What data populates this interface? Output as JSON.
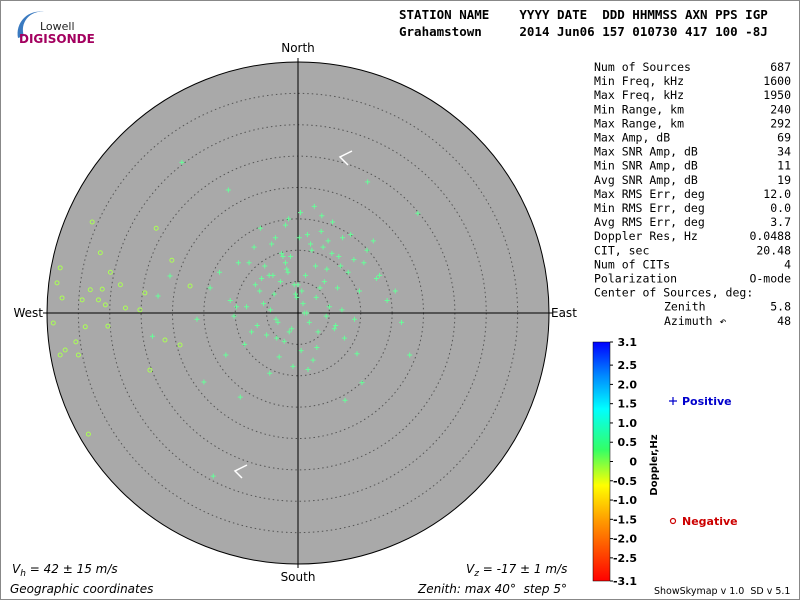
{
  "logo": {
    "top": "Lowell",
    "bottom": "DIGISONDE"
  },
  "header": {
    "line1": "STATION NAME    YYYY DATE  DDD HHMMSS AXN PPS IGP",
    "line2": "Grahamstown     2014 Jun06 157 010730 417 100 -8J"
  },
  "stats": {
    "rows": [
      [
        "Num of Sources",
        "687"
      ],
      [
        "Min Freq, kHz",
        "1600"
      ],
      [
        "Max Freq, kHz",
        "1950"
      ],
      [
        "Min Range, km",
        "240"
      ],
      [
        "Max Range, km",
        "292"
      ],
      [
        "Max Amp, dB",
        "69"
      ],
      [
        "Max SNR Amp, dB",
        "34"
      ],
      [
        "Min SNR Amp, dB",
        "11"
      ],
      [
        "Avg SNR Amp, dB",
        "19"
      ],
      [
        "Max RMS Err, deg",
        "12.0"
      ],
      [
        "Min RMS Err, deg",
        "0.0"
      ],
      [
        "Avg RMS Err, deg",
        "3.7"
      ],
      [
        "Doppler Res, Hz",
        "0.0488"
      ],
      [
        "CIT, sec",
        "20.48"
      ],
      [
        "Num of CITs",
        "4"
      ],
      [
        "Polarization",
        "O-mode"
      ]
    ],
    "center_title": "Center of Sources, deg:",
    "center_rows": [
      [
        "Zenith",
        "5.8"
      ],
      [
        "Azimuth ↶",
        "48"
      ]
    ]
  },
  "chart_data": {
    "type": "scatter",
    "directions": {
      "north": "North",
      "south": "South",
      "east": "East",
      "west": "West"
    },
    "rlim": [
      0,
      40
    ],
    "rticks": [
      5,
      10,
      15,
      20,
      25,
      30,
      35
    ],
    "series": [
      {
        "name": "Positive",
        "marker": "+",
        "color": "#66ff99",
        "legend_color": "#0000cc",
        "x": [
          -18.5,
          -11.1,
          11.1,
          19.1,
          -13.5,
          -9.2,
          -4.5,
          7.5,
          10.2,
          17.8,
          -11.5,
          -20.4,
          -22.3,
          -23.2,
          -16.1,
          -14.0,
          -12.5,
          -10.8,
          -9.5,
          -8.2,
          -7.0,
          -6.1,
          -5.3,
          -4.4,
          -3.6,
          -2.8,
          -2.0,
          -1.2,
          -0.4,
          0.4,
          1.2,
          2.0,
          2.9,
          3.7,
          4.6,
          5.4,
          6.3,
          7.1,
          8.0,
          8.9,
          9.8,
          11.0,
          12.5,
          14.2,
          -6.5,
          -5.0,
          -3.5,
          -2.2,
          -1.0,
          0.5,
          1.8,
          3.2,
          4.5,
          6.0,
          7.4,
          -7.8,
          -6.0,
          -4.2,
          -2.6,
          -1.5,
          0.0,
          1.5,
          2.6,
          4.0,
          5.5,
          -8.5,
          -5.5,
          -3.0,
          -0.8,
          1.0,
          3.0,
          5.0,
          7.0,
          9.0,
          -4.0,
          -2.0,
          0.2,
          2.2,
          4.2,
          6.5,
          -6.8,
          -3.8,
          -1.6,
          0.8,
          3.5,
          6.8,
          10.5,
          13.0,
          15.5,
          -9.8,
          -3.2,
          -0.2,
          2.4,
          -5.8,
          -1.8,
          1.4,
          4.8,
          8.4,
          -2.4,
          0.6,
          3.8,
          -7.4,
          -4.6,
          -0.6,
          2.8,
          5.8,
          -10.2,
          -3.4,
          1.6,
          12.0,
          -1.4,
          -15.0,
          16.5,
          9.4
        ],
        "y": [
          24.0,
          19.6,
          20.9,
          15.9,
          -26.0,
          -13.4,
          -9.6,
          -13.9,
          -11.1,
          -6.7,
          -6.7,
          5.9,
          2.7,
          -3.7,
          -1.0,
          4.0,
          6.5,
          2.0,
          8.0,
          1.0,
          10.5,
          3.5,
          7.5,
          0.5,
          12.0,
          5.0,
          14.0,
          9.0,
          3.0,
          16.0,
          6.0,
          11.0,
          2.5,
          13.0,
          7.0,
          9.5,
          4.0,
          12.0,
          6.5,
          8.5,
          3.5,
          10.0,
          5.5,
          2.0,
          -2.0,
          -3.5,
          -1.0,
          -4.5,
          -2.5,
          -6.0,
          -1.5,
          -3.0,
          -0.5,
          -2.0,
          -4.0,
          8.0,
          13.5,
          11.0,
          9.5,
          15.0,
          4.5,
          12.5,
          17.0,
          10.5,
          14.5,
          -5.0,
          1.5,
          -7.0,
          -8.5,
          0.0,
          -5.5,
          1.0,
          0.5,
          -1.0,
          6.0,
          8.0,
          12.0,
          10.0,
          5.0,
          9.0,
          4.5,
          3.0,
          6.5,
          1.5,
          4.0,
          7.5,
          8.0,
          6.0,
          3.5,
          1.0,
          -1.5,
          2.5,
          -7.5,
          5.5,
          7.0,
          0.0,
          11.5,
          12.5,
          9.0,
          3.5,
          15.5,
          -3.0,
          6.0,
          4.5,
          7.5,
          -2.5,
          -0.5,
          -4.0,
          -9.0,
          11.5,
          -3.0,
          -11.0,
          -1.5,
          -6.5
        ]
      },
      {
        "name": "Negative",
        "marker": "o",
        "color": "#aaff55",
        "legend_color": "#cc0000",
        "x": [
          -37.9,
          -38.4,
          -37.6,
          -39.0,
          -37.1,
          -35.0,
          -33.4,
          -32.8,
          -31.5,
          -29.9,
          -28.3,
          -30.7,
          -27.5,
          -25.2,
          -24.4,
          -22.6,
          -20.1,
          -17.2,
          -31.8,
          -33.9,
          -30.3,
          -35.4,
          -37.9,
          -31.2,
          -23.6,
          -18.8,
          -21.2,
          -34.4,
          -33.1
        ],
        "y": [
          7.2,
          4.8,
          2.4,
          -1.6,
          -5.9,
          -6.7,
          -19.3,
          14.5,
          9.6,
          6.5,
          4.5,
          1.3,
          0.8,
          0.5,
          3.2,
          13.5,
          8.4,
          4.3,
          2.1,
          -2.2,
          -2.1,
          -4.6,
          -6.7,
          3.8,
          -9.1,
          -5.1,
          -4.3,
          2.1,
          3.7
        ]
      }
    ]
  },
  "colorbar": {
    "label": "Doppler,Hz",
    "lim": [
      -3.1,
      3.1
    ],
    "ticks": [
      3.1,
      2.5,
      {
        "value": 2,
        "label": "2.0"
      },
      1.5,
      {
        "value": 1,
        "label": "1.0"
      },
      0.5,
      0,
      -0.5,
      {
        "value": -1,
        "label": "-1.0"
      },
      -1.5,
      {
        "value": -2,
        "label": "-2.0"
      },
      -2.5,
      -3.1
    ]
  },
  "footer": {
    "vh": {
      "symbol": "V",
      "sub": "h",
      "text": " = 42 ± 15 m/s"
    },
    "vz": {
      "symbol": "V",
      "sub": "z",
      "text": " = -17 ± 1 m/s"
    },
    "coords": "Geographic coordinates",
    "zenith": "Zenith: max 40°  step 5°",
    "version": "ShowSkymap v 1.0  SD v 5.1"
  }
}
